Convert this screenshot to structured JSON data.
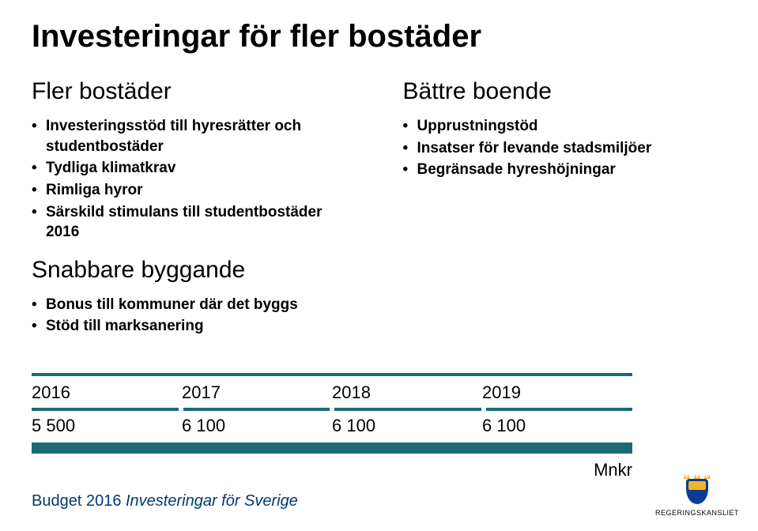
{
  "title": "Investeringar för fler bostäder",
  "left": {
    "sub1": "Fler bostäder",
    "list1": [
      "Investeringsstöd till hyresrätter och studentbostäder",
      "Tydliga klimatkrav",
      "Rimliga hyror",
      "Särskild stimulans till studentbostäder 2016"
    ],
    "sub2": "Snabbare byggande",
    "list2": [
      "Bonus till kommuner där det byggs",
      "Stöd till marksanering"
    ]
  },
  "right": {
    "sub1": "Bättre boende",
    "list1": [
      "Upprustningstöd",
      "Insatser för levande stadsmiljöer",
      "Begränsade hyreshöjningar"
    ]
  },
  "table": {
    "years": [
      "2016",
      "2017",
      "2018",
      "2019"
    ],
    "values": [
      "5 500",
      "6 100",
      "6 100",
      "6 100"
    ],
    "unit": "Mnkr",
    "rule_color": "#1b6b74"
  },
  "footer": {
    "part1": "Budget 2016 ",
    "part2": "Investeringar för Sverige"
  },
  "logo": {
    "label": "REGERINGSKANSLIET"
  }
}
